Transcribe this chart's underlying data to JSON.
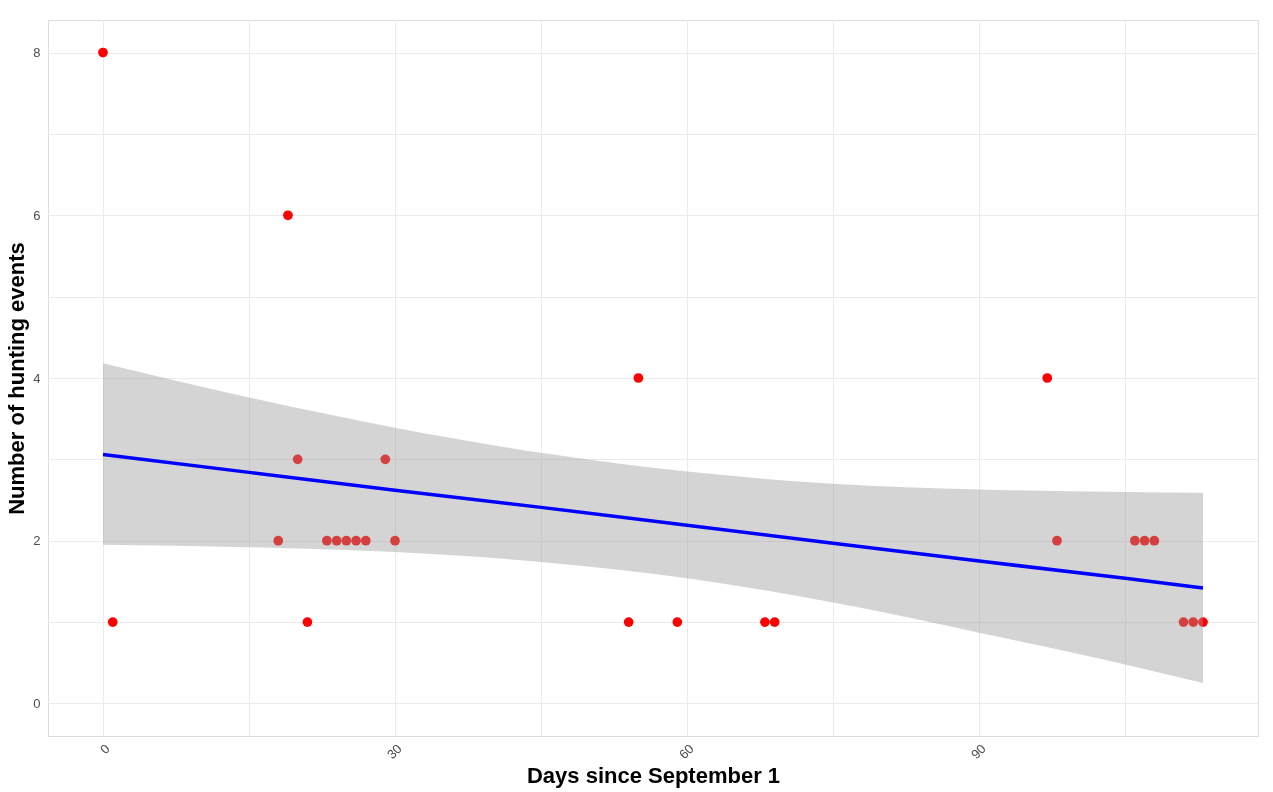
{
  "chart_data": {
    "type": "scatter",
    "xlabel": "Days since September 1",
    "ylabel": "Number of hunting events",
    "xlim": [
      -5.65,
      118.65
    ],
    "ylim": [
      -0.4,
      8.4
    ],
    "xticks": [
      0,
      {
        "value": 15,
        "label": null
      },
      30,
      {
        "value": 45,
        "label": null
      },
      60,
      {
        "value": 75,
        "label": null
      },
      90,
      {
        "value": 105,
        "label": null
      }
    ],
    "yticks": [
      0,
      {
        "value": 1,
        "label": null
      },
      2,
      {
        "value": 3,
        "label": null
      },
      4,
      {
        "value": 5,
        "label": null
      },
      6,
      {
        "value": 7,
        "label": null
      },
      8
    ],
    "grid": true,
    "marker": "circle",
    "series": [
      {
        "color": "#ff0000",
        "x": [
          0,
          1,
          18,
          19,
          20,
          21,
          23,
          24,
          25,
          26,
          27,
          29,
          30,
          54,
          55,
          59,
          68,
          69,
          97,
          98,
          106,
          107,
          108,
          111,
          112,
          113
        ],
        "values": [
          8,
          1,
          2,
          6,
          3,
          1,
          2,
          2,
          2,
          2,
          2,
          3,
          2,
          1,
          4,
          1,
          1,
          1,
          4,
          2,
          2,
          2,
          2,
          1,
          1,
          1
        ]
      },
      {
        "type": "line",
        "color": "#0000ff",
        "line_style": "solid",
        "marker": "none",
        "x": [
          0,
          15,
          30,
          45,
          60,
          75,
          90,
          105,
          113
        ],
        "values": [
          3.06,
          2.84,
          2.62,
          2.41,
          2.19,
          1.97,
          1.75,
          1.54,
          1.42
        ],
        "lower": [
          1.95,
          1.92,
          1.86,
          1.74,
          1.54,
          1.24,
          0.87,
          0.48,
          0.25
        ],
        "upper": [
          4.18,
          3.76,
          3.39,
          3.08,
          2.85,
          2.7,
          2.63,
          2.6,
          2.59
        ]
      }
    ]
  }
}
